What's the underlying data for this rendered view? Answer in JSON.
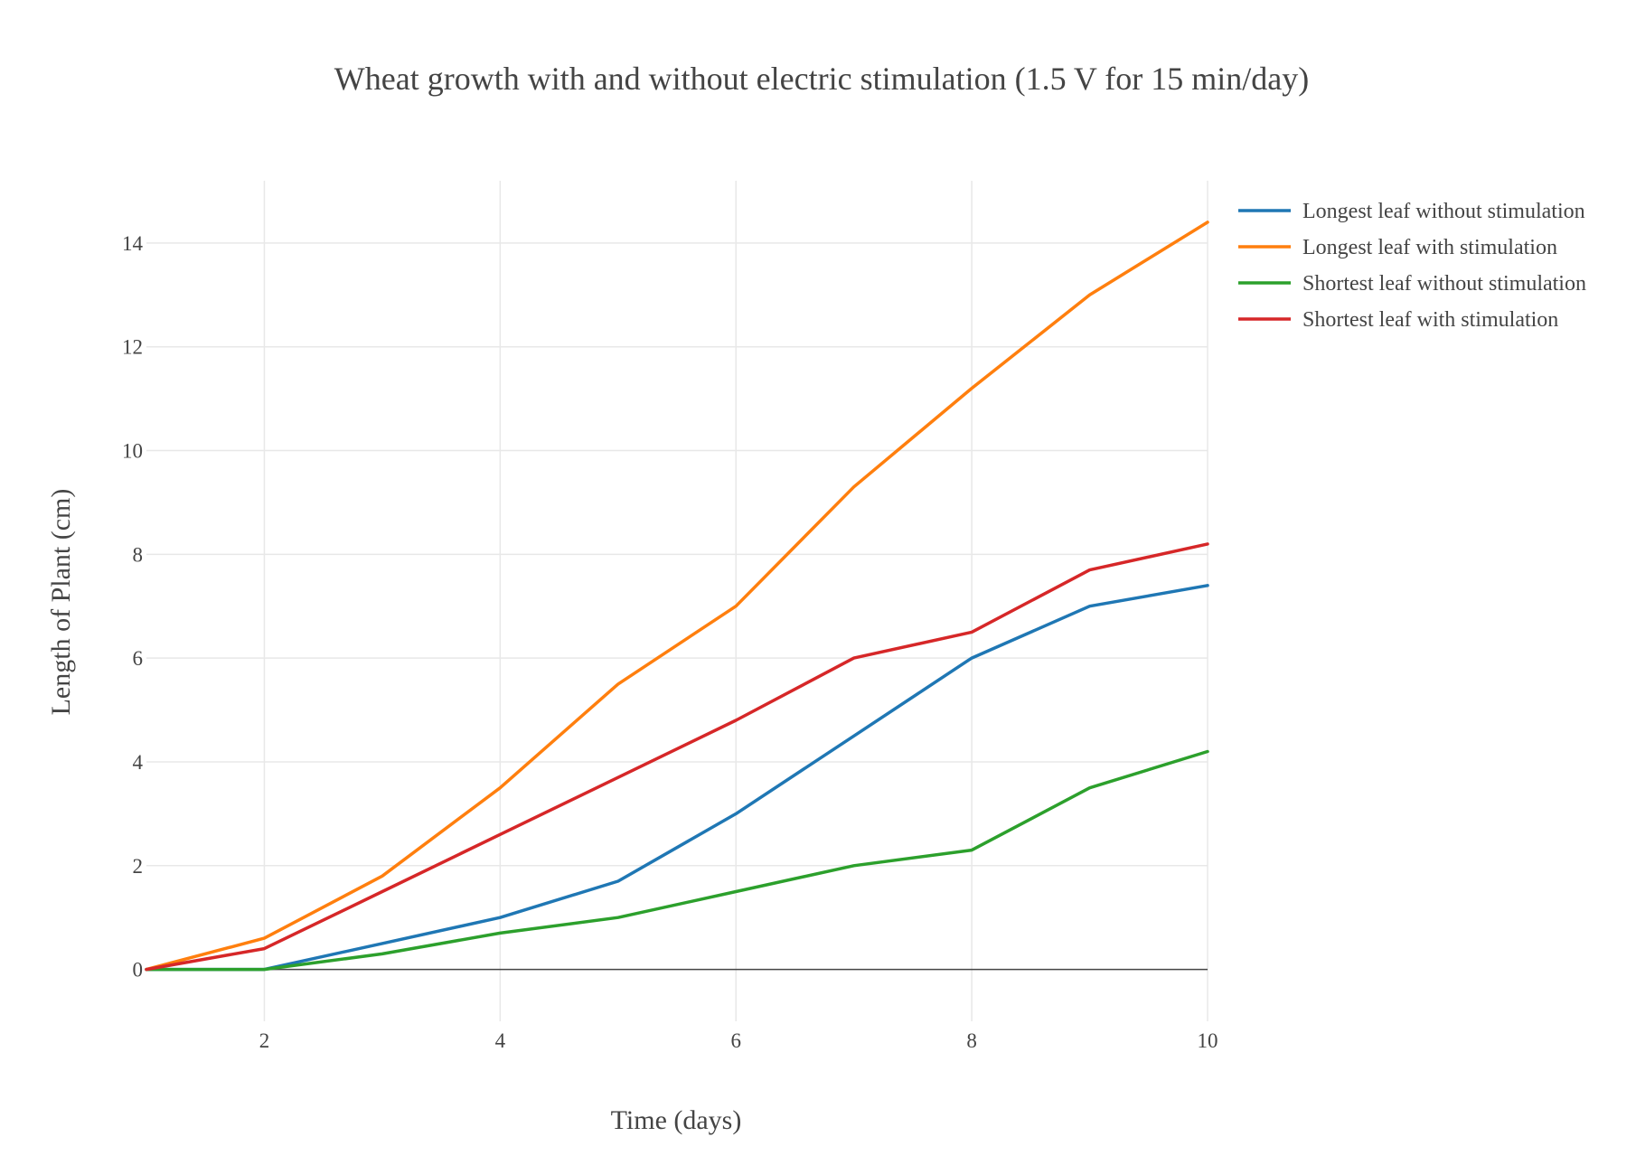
{
  "chart_data": {
    "type": "line",
    "title": "Wheat growth with and without electric stimulation (1.5 V for 15 min/day)",
    "xlabel": "Time (days)",
    "ylabel": "Length of Plant (cm)",
    "xlim": [
      1,
      10
    ],
    "ylim": [
      -1,
      15.2
    ],
    "xticks": [
      2,
      4,
      6,
      8,
      10
    ],
    "yticks": [
      0,
      2,
      4,
      6,
      8,
      10,
      12,
      14
    ],
    "grid": true,
    "legend_position": "top-right",
    "x": [
      1,
      2,
      3,
      4,
      5,
      6,
      7,
      8,
      9,
      10
    ],
    "series": [
      {
        "name": "Longest leaf without stimulation",
        "color": "#1f77b4",
        "values": [
          0,
          0,
          0.5,
          1.0,
          1.7,
          3.0,
          4.5,
          6.0,
          7.0,
          7.4
        ]
      },
      {
        "name": "Longest leaf with stimulation",
        "color": "#ff7f0e",
        "values": [
          0,
          0.6,
          1.8,
          3.5,
          5.5,
          7.0,
          9.3,
          11.2,
          13.0,
          14.4
        ]
      },
      {
        "name": "Shortest leaf without stimulation",
        "color": "#2ca02c",
        "values": [
          0,
          0,
          0.3,
          0.7,
          1.0,
          1.5,
          2.0,
          2.3,
          3.5,
          4.2
        ]
      },
      {
        "name": "Shortest leaf with stimulation",
        "color": "#d62728",
        "values": [
          0,
          0.4,
          1.5,
          2.6,
          3.7,
          4.8,
          6.0,
          6.5,
          7.7,
          8.2
        ]
      }
    ]
  }
}
